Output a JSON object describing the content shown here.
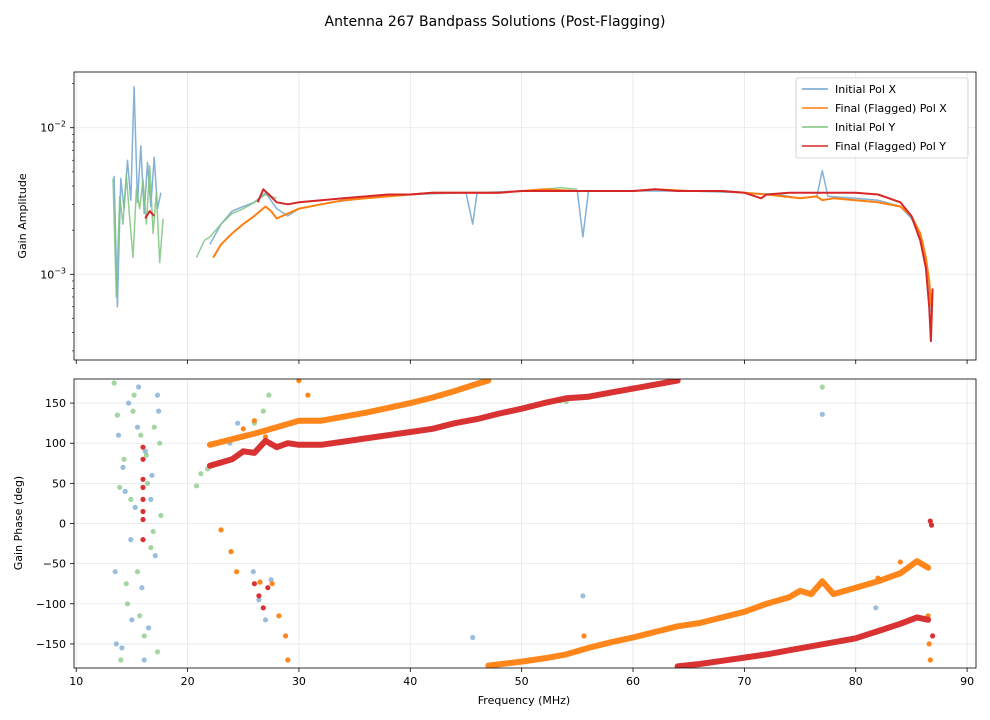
{
  "figure": {
    "title": "Antenna 267 Bandpass Solutions (Post-Flagging)"
  },
  "chart_data": [
    {
      "type": "line",
      "title": "",
      "xlabel": "",
      "ylabel": "Gain Amplitude",
      "xlim": [
        9.8,
        90.8
      ],
      "ylim": [
        0.00026,
        0.024
      ],
      "yscale": "log",
      "ytick_labels": [
        "10^-3",
        "10^-2"
      ],
      "ytick_values": [
        0.001,
        0.01
      ],
      "grid": true,
      "legend": "top-right",
      "colors": {
        "initial_x": "#6fa3cf",
        "final_x": "#ff7f0e",
        "initial_y": "#7cc47c",
        "final_y": "#d62728"
      },
      "series": [
        {
          "name": "Initial Pol X",
          "color": "#6fa3cf",
          "segments": [
            {
              "x": [
                13.4,
                13.7,
                14.0,
                14.3,
                14.6,
                14.9,
                15.2,
                15.5,
                15.8,
                16.1,
                16.4,
                16.7,
                17.0,
                17.3,
                17.6
              ],
              "y": [
                0.0047,
                0.0006,
                0.0045,
                0.0028,
                0.006,
                0.0032,
                0.019,
                0.0031,
                0.0075,
                0.0026,
                0.0058,
                0.0029,
                0.0063,
                0.0028,
                0.0036
              ]
            },
            {
              "x": [
                22.0,
                23.0,
                24.0,
                25.0,
                26.0,
                27.0,
                28.0,
                29.0,
                30.0,
                33.0,
                36.0,
                40.0,
                45.0,
                45.6,
                46.0,
                50.0,
                55.0,
                55.5,
                56.0,
                60.0,
                65.0,
                70.0,
                73.0,
                75.0,
                76.5,
                77.0,
                77.5,
                80.0,
                82.0,
                84.0,
                85.0,
                86.0,
                86.5,
                86.8
              ],
              "y": [
                0.0016,
                0.0022,
                0.0027,
                0.0029,
                0.0031,
                0.0036,
                0.0028,
                0.0025,
                0.0028,
                0.0031,
                0.0033,
                0.0035,
                0.0036,
                0.0022,
                0.0036,
                0.0037,
                0.0037,
                0.0018,
                0.0037,
                0.0037,
                0.0037,
                0.0036,
                0.0035,
                0.0033,
                0.0034,
                0.0051,
                0.0034,
                0.0033,
                0.0032,
                0.0029,
                0.0024,
                0.0017,
                0.001,
                0.00055
              ]
            }
          ]
        },
        {
          "name": "Final (Flagged) Pol X",
          "color": "#ff7f0e",
          "segments": [
            {
              "x": [
                22.3,
                23.0,
                24.0,
                25.0,
                26.0,
                27.0,
                27.5,
                28.0,
                29.0,
                30.0,
                32.0,
                34.0,
                36.0,
                38.0,
                40.0,
                42.0,
                45.0,
                48.0,
                50.0,
                52.0,
                55.0,
                58.0,
                60.0,
                62.0,
                65.0,
                68.0,
                70.0,
                72.0,
                75.0,
                76.5,
                77.0,
                78.0,
                80.0,
                82.0,
                84.0,
                85.0,
                85.8,
                86.3,
                86.6,
                86.8
              ],
              "y": [
                0.0013,
                0.0016,
                0.0019,
                0.0022,
                0.0025,
                0.0029,
                0.0027,
                0.0024,
                0.0026,
                0.0028,
                0.003,
                0.0032,
                0.0033,
                0.0034,
                0.0035,
                0.0036,
                0.0036,
                0.0036,
                0.0037,
                0.0038,
                0.0037,
                0.0037,
                0.0037,
                0.0038,
                0.0037,
                0.0037,
                0.0036,
                0.0035,
                0.0033,
                0.0034,
                0.0032,
                0.0033,
                0.0032,
                0.0031,
                0.0029,
                0.0025,
                0.0019,
                0.0013,
                0.0009,
                0.0006
              ]
            }
          ]
        },
        {
          "name": "Initial Pol Y",
          "color": "#7cc47c",
          "segments": [
            {
              "x": [
                13.3,
                13.6,
                13.9,
                14.2,
                14.5,
                14.8,
                15.1,
                15.4,
                15.7,
                16.0,
                16.3,
                16.6,
                16.9,
                17.2,
                17.5,
                17.8
              ],
              "y": [
                0.0045,
                0.0007,
                0.0034,
                0.0022,
                0.0048,
                0.0024,
                0.0013,
                0.0038,
                0.0028,
                0.0044,
                0.0022,
                0.0055,
                0.0019,
                0.0036,
                0.0012,
                0.0024
              ]
            },
            {
              "x": [
                20.8,
                21.5,
                22.0,
                23.0,
                24.0,
                25.0,
                26.0,
                27.0,
                28.0
              ],
              "y": [
                0.0013,
                0.0017,
                0.0018,
                0.0022,
                0.0026,
                0.0028,
                0.0031,
                0.0035,
                0.0033
              ]
            },
            {
              "x": [
                52.0,
                53.5,
                55.0
              ],
              "y": [
                0.0038,
                0.0039,
                0.0038
              ]
            }
          ]
        },
        {
          "name": "Final (Flagged) Pol Y",
          "color": "#d62728",
          "segments": [
            {
              "x": [
                16.2,
                16.6,
                17.0
              ],
              "y": [
                0.0024,
                0.0027,
                0.0025
              ]
            },
            {
              "x": [
                26.3,
                26.8,
                27.3,
                28.0,
                29.0,
                30.0,
                32.0,
                34.0,
                36.0,
                38.0,
                40.0,
                42.0,
                44.0,
                46.0,
                48.0,
                50.0,
                52.0,
                54.0,
                56.0,
                58.0,
                60.0,
                62.0,
                64.0,
                66.0,
                68.0,
                70.0,
                71.5,
                72.0,
                74.0,
                76.0,
                78.0,
                80.0,
                82.0,
                83.0,
                84.0,
                85.0,
                85.8,
                86.3,
                86.6,
                86.75,
                86.9
              ],
              "y": [
                0.0031,
                0.0038,
                0.0035,
                0.0031,
                0.003,
                0.0031,
                0.0032,
                0.0033,
                0.0034,
                0.0035,
                0.0035,
                0.0036,
                0.0036,
                0.0036,
                0.0036,
                0.0037,
                0.0037,
                0.0037,
                0.0037,
                0.0037,
                0.0037,
                0.0038,
                0.0037,
                0.0037,
                0.0037,
                0.0036,
                0.0033,
                0.0035,
                0.0036,
                0.0036,
                0.0036,
                0.0036,
                0.0035,
                0.0033,
                0.0031,
                0.0025,
                0.0017,
                0.0011,
                0.0006,
                0.00035,
                0.0008
              ]
            }
          ]
        }
      ]
    },
    {
      "type": "scatter",
      "title": "",
      "xlabel": "Frequency (MHz)",
      "ylabel": "Gain Phase (deg)",
      "xlim": [
        9.8,
        90.8
      ],
      "ylim": [
        -180,
        180
      ],
      "xticks": [
        10,
        20,
        30,
        40,
        50,
        60,
        70,
        80,
        90
      ],
      "yticks": [
        -150,
        -100,
        -50,
        0,
        50,
        100,
        150
      ],
      "grid": true,
      "series": [
        {
          "name": "Initial Pol X",
          "color": "#6fa3cf",
          "x": [
            13.5,
            13.8,
            14.1,
            14.4,
            14.7,
            15.0,
            15.3,
            15.6,
            15.9,
            16.2,
            16.5,
            16.8,
            17.1,
            17.4,
            13.6,
            14.2,
            14.9,
            15.5,
            16.1,
            16.7,
            17.3,
            23.8,
            24.5,
            25.2,
            25.9,
            26.4,
            27.0,
            27.5,
            45.6,
            55.5,
            77.0,
            81.8
          ],
          "y": [
            -60,
            110,
            -155,
            40,
            150,
            -120,
            20,
            170,
            -80,
            90,
            -130,
            60,
            -40,
            140,
            -150,
            70,
            -20,
            120,
            -170,
            30,
            160,
            100,
            125,
            110,
            -60,
            -95,
            -120,
            -70,
            -142,
            -90,
            136,
            -105
          ]
        },
        {
          "name": "Final (Flagged) Pol X",
          "color": "#ff7f0e",
          "x": [
            23.0,
            23.9,
            24.4,
            25.0,
            26.0,
            26.5,
            27.0,
            27.6,
            28.2,
            28.8,
            29.0,
            30.0,
            30.8,
            55.6,
            82.0,
            84.0,
            86.5,
            86.6,
            86.7
          ],
          "y": [
            -8,
            -35,
            -60,
            118,
            128,
            -73,
            108,
            -75,
            -115,
            -140,
            -170,
            178,
            160,
            -140,
            -68,
            -48,
            -115,
            -150,
            -170
          ],
          "bands": [
            {
              "x": [
                22.0,
                24.0,
                26.0,
                28.0,
                30.0,
                32.0,
                34.0,
                36.0,
                38.0,
                40.0,
                42.0,
                44.0,
                46.0,
                47.0
              ],
              "y": [
                98,
                105,
                112,
                120,
                128,
                128,
                133,
                138,
                144,
                150,
                157,
                165,
                174,
                178
              ]
            },
            {
              "x": [
                47.0,
                50.0,
                52.0,
                54.0,
                56.0,
                58.0,
                60.0,
                62.0,
                64.0,
                66.0,
                68.0,
                70.0,
                72.0,
                74.0,
                75.0,
                76.0,
                77.0,
                78.0,
                80.0,
                82.0,
                84.0,
                85.5,
                86.5
              ],
              "y": [
                -177,
                -172,
                -168,
                -163,
                -155,
                -148,
                -142,
                -135,
                -128,
                -124,
                -117,
                -110,
                -100,
                -92,
                -84,
                -88,
                -72,
                -88,
                -80,
                -72,
                -62,
                -47,
                -55
              ]
            }
          ]
        },
        {
          "name": "Initial Pol Y",
          "color": "#7cc47c",
          "x": [
            13.4,
            13.7,
            14.0,
            14.3,
            14.6,
            14.9,
            15.2,
            15.5,
            15.8,
            16.1,
            16.4,
            16.7,
            17.0,
            17.3,
            17.6,
            13.9,
            14.5,
            15.1,
            15.7,
            16.3,
            16.9,
            17.5,
            20.8,
            21.2,
            21.8,
            22.2,
            26.0,
            26.8,
            27.3,
            53.5,
            54.0,
            77.0
          ],
          "y": [
            175,
            135,
            -170,
            80,
            -100,
            30,
            160,
            -60,
            110,
            -140,
            50,
            -30,
            120,
            -160,
            10,
            45,
            -75,
            140,
            -115,
            85,
            -10,
            100,
            47,
            62,
            68,
            72,
            125,
            140,
            160,
            153,
            152,
            170
          ]
        },
        {
          "name": "Final (Flagged) Pol Y",
          "color": "#d62728",
          "x": [
            16.0,
            16.0,
            16.0,
            16.0,
            16.0,
            16.0,
            16.0,
            16.0,
            26.0,
            26.4,
            26.8,
            27.2,
            86.7,
            86.8,
            86.9
          ],
          "y": [
            80,
            55,
            30,
            5,
            -20,
            95,
            45,
            15,
            -75,
            -90,
            -105,
            -80,
            3,
            -2,
            -140
          ],
          "bands": [
            {
              "x": [
                22.0,
                23.0,
                24.0,
                25.0,
                26.0,
                27.0,
                28.0,
                29.0,
                30.0,
                32.0,
                34.0,
                36.0,
                38.0,
                40.0,
                42.0,
                44.0,
                46.0,
                48.0,
                50.0,
                52.0,
                54.0,
                56.0,
                58.0,
                60.0,
                62.0,
                64.0
              ],
              "y": [
                72,
                76,
                80,
                90,
                88,
                103,
                95,
                100,
                98,
                98,
                102,
                106,
                110,
                114,
                118,
                125,
                130,
                137,
                143,
                150,
                156,
                158,
                163,
                168,
                173,
                178
              ]
            },
            {
              "x": [
                64.0,
                66.0,
                68.0,
                70.0,
                72.0,
                74.0,
                76.0,
                78.0,
                80.0,
                82.0,
                84.0,
                85.5,
                86.5
              ],
              "y": [
                -178,
                -175,
                -171,
                -167,
                -163,
                -158,
                -153,
                -148,
                -143,
                -134,
                -125,
                -117,
                -120
              ]
            }
          ]
        }
      ]
    }
  ]
}
